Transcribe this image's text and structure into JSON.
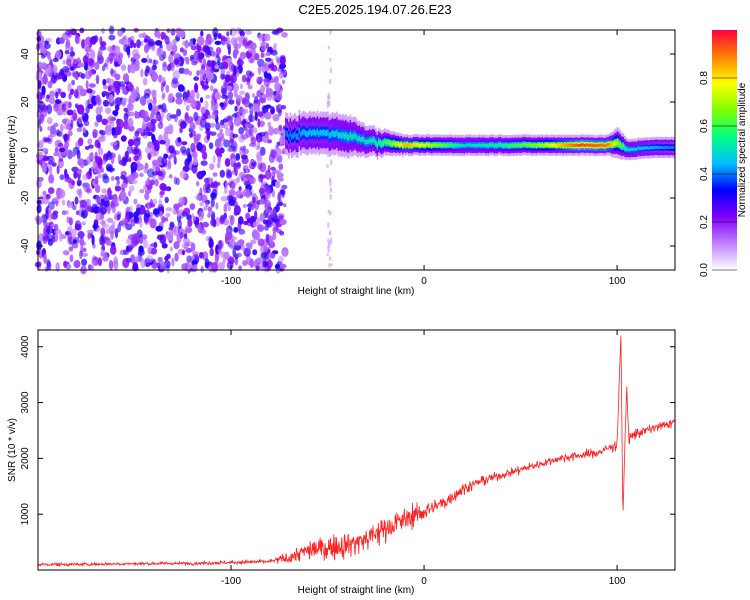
{
  "title": "C2E5.2025.194.07.26.E23",
  "chart_data": [
    {
      "type": "heatmap",
      "xlabel": "Height of straight line (km)",
      "ylabel": "Frequency (Hz)",
      "xlim": [
        -200,
        130
      ],
      "ylim": [
        -50,
        50
      ],
      "xticks": [
        -100,
        0,
        100
      ],
      "yticks": [
        -40,
        -20,
        0,
        20,
        40
      ],
      "colorbar": {
        "label": "Normalized spectral amplitude",
        "range": [
          0,
          1
        ],
        "ticks": [
          0.0,
          0.2,
          0.4,
          0.6,
          0.8
        ],
        "colors": [
          "#ffffff",
          "#c080ff",
          "#8000ff",
          "#0000ff",
          "#00c0ff",
          "#00ff80",
          "#80ff00",
          "#ffff00",
          "#ff8000",
          "#ff0040"
        ]
      },
      "noise_region": {
        "x": [
          -200,
          -72
        ],
        "y": [
          -50,
          50
        ],
        "amplitude": [
          0.05,
          0.3
        ]
      },
      "signal_ridge": {
        "x": [
          -72,
          -60,
          -50,
          -40,
          -30,
          -20,
          -10,
          0,
          20,
          40,
          60,
          80,
          95,
          100,
          105,
          115,
          130
        ],
        "frequency": [
          6,
          7,
          7,
          6,
          4,
          3,
          2,
          2,
          2,
          2,
          2,
          2,
          2,
          3,
          0,
          1,
          1
        ],
        "amplitude": [
          0.4,
          0.45,
          0.45,
          0.5,
          0.5,
          0.6,
          0.85,
          0.75,
          0.5,
          0.55,
          0.7,
          0.95,
          0.9,
          0.7,
          0.5,
          0.45,
          0.4
        ],
        "half_width_hz": [
          4,
          4,
          4,
          4,
          3,
          2.5,
          2,
          2,
          2,
          2,
          2,
          2,
          2,
          3,
          2,
          2,
          2
        ]
      },
      "grid": false
    },
    {
      "type": "line",
      "xlabel": "Height of straight line (km)",
      "ylabel": "SNR (10 * v/v)",
      "xlim": [
        -200,
        130
      ],
      "ylim": [
        0,
        4300
      ],
      "xticks": [
        -100,
        0,
        100
      ],
      "yticks": [
        1000,
        2000,
        3000,
        4000
      ],
      "series": [
        {
          "color": "#ff2020",
          "x": [
            -200,
            -180,
            -160,
            -140,
            -120,
            -100,
            -80,
            -70,
            -60,
            -50,
            -40,
            -30,
            -20,
            -10,
            0,
            10,
            20,
            30,
            40,
            50,
            60,
            70,
            80,
            90,
            100,
            102,
            103,
            104,
            105,
            106,
            110,
            120,
            130
          ],
          "y": [
            100,
            100,
            110,
            115,
            120,
            135,
            150,
            220,
            350,
            400,
            450,
            550,
            750,
            900,
            1050,
            1200,
            1450,
            1600,
            1700,
            1800,
            1900,
            2000,
            2050,
            2100,
            2250,
            4250,
            900,
            2200,
            3300,
            2350,
            2450,
            2550,
            2650
          ],
          "noise": [
            30,
            30,
            30,
            30,
            30,
            35,
            40,
            120,
            180,
            220,
            250,
            250,
            250,
            220,
            180,
            150,
            110,
            90,
            80,
            80,
            80,
            80,
            80,
            90,
            100,
            0,
            0,
            0,
            0,
            120,
            100,
            90,
            90
          ]
        }
      ],
      "grid": false
    }
  ]
}
